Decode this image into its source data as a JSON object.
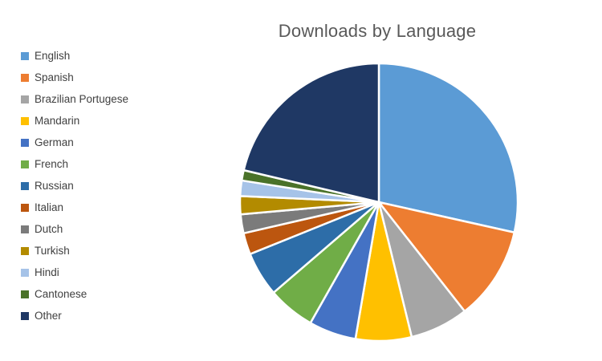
{
  "chart_data": {
    "type": "pie",
    "title": "Downloads by Language",
    "legend_position": "left",
    "start_angle_deg": 0,
    "direction": "clockwise",
    "unit": "percent",
    "categories": [
      "English",
      "Spanish",
      "Brazilian Portugese",
      "Mandarin",
      "German",
      "French",
      "Russian",
      "Italian",
      "Dutch",
      "Turkish",
      "Hindi",
      "Cantonese",
      "Other"
    ],
    "values": [
      28.5,
      10.9,
      6.8,
      6.5,
      5.5,
      5.5,
      5.2,
      2.5,
      2.2,
      2.1,
      1.8,
      1.2,
      21.3
    ],
    "colors": [
      "#5B9BD5",
      "#ED7D31",
      "#A5A5A5",
      "#FFC000",
      "#4472C4",
      "#70AD47",
      "#2D6DA8",
      "#BC560F",
      "#7B7B7B",
      "#B38B00",
      "#A6C3E8",
      "#4A7229",
      "#1F3864"
    ],
    "title_color": "#595959",
    "slice_border_color": "#FFFFFF"
  }
}
